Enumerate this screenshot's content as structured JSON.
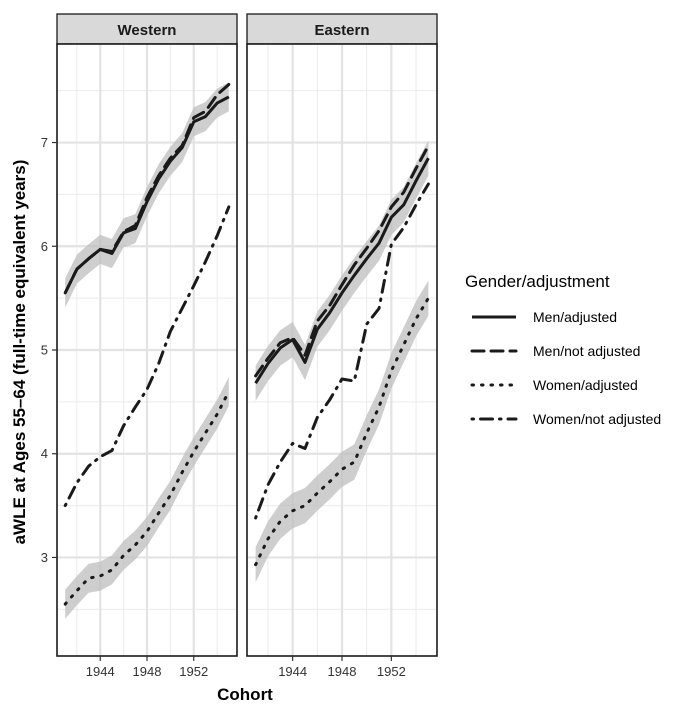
{
  "chart_data": {
    "type": "line",
    "xlabel": "Cohort",
    "ylabel": "aWLE at Ages 55–64 (full-time equivalent years)",
    "xlim": [
      1940.3,
      1955.7
    ],
    "ylim": [
      2.05,
      7.95
    ],
    "xticks": [
      1944,
      1948,
      1952
    ],
    "yticks": [
      3,
      4,
      5,
      6,
      7
    ],
    "grid": true,
    "legend_title": "Gender/adjustment",
    "legend_position": "right",
    "ribbon_color": "#bdbdbd",
    "line_color": "#1a1a1a",
    "legend": [
      {
        "key": "men_adj",
        "label": "Men/adjusted",
        "style": "solid"
      },
      {
        "key": "men_not",
        "label": "Men/not adjusted",
        "style": "dashed"
      },
      {
        "key": "women_adj",
        "label": "Women/adjusted",
        "style": "dotted"
      },
      {
        "key": "women_not",
        "label": "Women/not adjusted",
        "style": "dotdash"
      }
    ],
    "x": [
      1941,
      1942,
      1943,
      1944,
      1945,
      1946,
      1947,
      1948,
      1949,
      1950,
      1951,
      1952,
      1953,
      1954,
      1955
    ],
    "panels": [
      {
        "label": "Western",
        "series": [
          {
            "key": "men_adj",
            "values": [
              5.55,
              5.78,
              5.88,
              5.97,
              5.93,
              6.13,
              6.17,
              6.43,
              6.65,
              6.82,
              6.95,
              7.2,
              7.25,
              7.38,
              7.44
            ],
            "ribbon": 0.14
          },
          {
            "key": "men_not",
            "values": [
              5.55,
              5.78,
              5.88,
              5.97,
              5.95,
              6.14,
              6.2,
              6.47,
              6.68,
              6.85,
              6.97,
              7.24,
              7.3,
              7.46,
              7.56
            ]
          },
          {
            "key": "women_adj",
            "values": [
              2.55,
              2.68,
              2.8,
              2.82,
              2.88,
              3.02,
              3.12,
              3.25,
              3.43,
              3.6,
              3.82,
              4.02,
              4.2,
              4.38,
              4.6
            ],
            "ribbon": 0.14
          },
          {
            "key": "women_not",
            "values": [
              3.5,
              3.72,
              3.88,
              3.97,
              4.03,
              4.27,
              4.45,
              4.62,
              4.87,
              5.18,
              5.4,
              5.62,
              5.85,
              6.1,
              6.38
            ]
          }
        ]
      },
      {
        "label": "Eastern",
        "series": [
          {
            "key": "men_adj",
            "values": [
              4.68,
              4.87,
              5.02,
              5.1,
              4.88,
              5.2,
              5.36,
              5.55,
              5.72,
              5.88,
              6.03,
              6.28,
              6.4,
              6.63,
              6.85
            ],
            "ribbon": 0.17
          },
          {
            "key": "men_not",
            "values": [
              4.75,
              4.92,
              5.07,
              5.12,
              4.95,
              5.28,
              5.43,
              5.63,
              5.82,
              5.98,
              6.15,
              6.38,
              6.52,
              6.75,
              6.97
            ]
          },
          {
            "key": "women_adj",
            "values": [
              2.93,
              3.18,
              3.35,
              3.45,
              3.5,
              3.62,
              3.73,
              3.85,
              3.92,
              4.2,
              4.45,
              4.8,
              5.05,
              5.3,
              5.5
            ],
            "ribbon": 0.17
          },
          {
            "key": "women_not",
            "values": [
              3.38,
              3.7,
              3.92,
              4.1,
              4.05,
              4.35,
              4.52,
              4.72,
              4.7,
              5.25,
              5.4,
              6.02,
              6.18,
              6.4,
              6.6
            ]
          }
        ]
      }
    ]
  }
}
